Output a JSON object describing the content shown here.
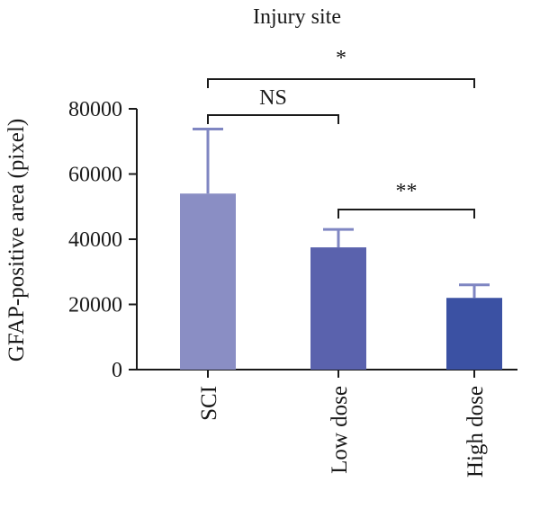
{
  "chart_data": {
    "type": "bar",
    "title": "Injury site",
    "xlabel": "",
    "ylabel": "GFAP-positive area (pixel)",
    "categories": [
      "SCI",
      "Low dose",
      "High dose"
    ],
    "values": [
      54000,
      37500,
      22000
    ],
    "error_upper": [
      73800,
      43000,
      26000
    ],
    "ylim": [
      0,
      80000
    ],
    "yticks": [
      0,
      20000,
      40000,
      60000,
      80000
    ],
    "ytick_labels": [
      "0",
      "20000",
      "40000",
      "60000",
      "80000"
    ],
    "bar_colors": [
      "#8a8ec4",
      "#5a62ad",
      "#3b51a3"
    ],
    "error_color": "#7f86c2",
    "grid": false,
    "significance": [
      {
        "from": "SCI",
        "to": "High dose",
        "label": "*"
      },
      {
        "from": "SCI",
        "to": "Low dose",
        "label": "NS"
      },
      {
        "from": "Low dose",
        "to": "High dose",
        "label": "**"
      }
    ]
  }
}
